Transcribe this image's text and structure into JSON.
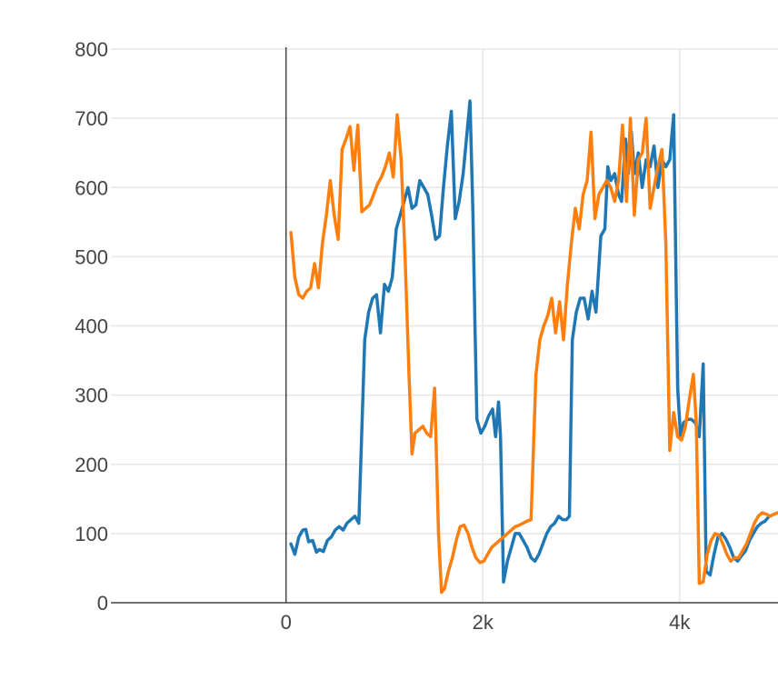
{
  "chart_data": {
    "type": "line",
    "title": "",
    "xlabel": "",
    "ylabel": "",
    "xlim": [
      -1780,
      5000
    ],
    "ylim": [
      0,
      800
    ],
    "x_ticks": [
      0,
      2000,
      4000
    ],
    "x_tick_labels": [
      "0",
      "2k",
      "4k"
    ],
    "y_ticks": [
      0,
      100,
      200,
      300,
      400,
      500,
      600,
      700,
      800
    ],
    "y_tick_labels": [
      "0",
      "100",
      "200",
      "300",
      "400",
      "500",
      "600",
      "700",
      "800"
    ],
    "grid": true,
    "legend": "none",
    "series": [
      {
        "color": "#1f77b4",
        "points": [
          [
            50,
            85
          ],
          [
            90,
            70
          ],
          [
            130,
            95
          ],
          [
            170,
            105
          ],
          [
            200,
            106
          ],
          [
            230,
            88
          ],
          [
            270,
            90
          ],
          [
            310,
            73
          ],
          [
            340,
            77
          ],
          [
            380,
            74
          ],
          [
            420,
            90
          ],
          [
            460,
            95
          ],
          [
            500,
            105
          ],
          [
            540,
            110
          ],
          [
            580,
            105
          ],
          [
            620,
            115
          ],
          [
            660,
            120
          ],
          [
            700,
            125
          ],
          [
            740,
            115
          ],
          [
            800,
            380
          ],
          [
            840,
            420
          ],
          [
            880,
            440
          ],
          [
            920,
            445
          ],
          [
            960,
            390
          ],
          [
            1000,
            460
          ],
          [
            1040,
            450
          ],
          [
            1080,
            470
          ],
          [
            1120,
            540
          ],
          [
            1160,
            560
          ],
          [
            1200,
            580
          ],
          [
            1240,
            600
          ],
          [
            1280,
            570
          ],
          [
            1320,
            575
          ],
          [
            1360,
            610
          ],
          [
            1400,
            600
          ],
          [
            1440,
            590
          ],
          [
            1480,
            560
          ],
          [
            1520,
            525
          ],
          [
            1560,
            530
          ],
          [
            1600,
            600
          ],
          [
            1640,
            660
          ],
          [
            1680,
            710
          ],
          [
            1720,
            555
          ],
          [
            1760,
            580
          ],
          [
            1800,
            620
          ],
          [
            1840,
            680
          ],
          [
            1870,
            725
          ],
          [
            1900,
            560
          ],
          [
            1920,
            400
          ],
          [
            1940,
            265
          ],
          [
            1980,
            245
          ],
          [
            2020,
            255
          ],
          [
            2060,
            270
          ],
          [
            2100,
            280
          ],
          [
            2130,
            240
          ],
          [
            2160,
            290
          ],
          [
            2180,
            240
          ],
          [
            2210,
            30
          ],
          [
            2250,
            60
          ],
          [
            2290,
            80
          ],
          [
            2330,
            100
          ],
          [
            2370,
            100
          ],
          [
            2410,
            90
          ],
          [
            2450,
            80
          ],
          [
            2490,
            65
          ],
          [
            2530,
            60
          ],
          [
            2570,
            70
          ],
          [
            2610,
            85
          ],
          [
            2650,
            100
          ],
          [
            2690,
            110
          ],
          [
            2730,
            115
          ],
          [
            2770,
            125
          ],
          [
            2810,
            120
          ],
          [
            2850,
            120
          ],
          [
            2880,
            125
          ],
          [
            2910,
            380
          ],
          [
            2950,
            420
          ],
          [
            2990,
            440
          ],
          [
            3030,
            440
          ],
          [
            3070,
            410
          ],
          [
            3110,
            450
          ],
          [
            3150,
            420
          ],
          [
            3200,
            530
          ],
          [
            3240,
            540
          ],
          [
            3270,
            630
          ],
          [
            3300,
            610
          ],
          [
            3340,
            620
          ],
          [
            3380,
            590
          ],
          [
            3410,
            580
          ],
          [
            3450,
            670
          ],
          [
            3480,
            620
          ],
          [
            3510,
            680
          ],
          [
            3540,
            620
          ],
          [
            3580,
            650
          ],
          [
            3620,
            600
          ],
          [
            3660,
            640
          ],
          [
            3700,
            630
          ],
          [
            3740,
            660
          ],
          [
            3780,
            600
          ],
          [
            3820,
            640
          ],
          [
            3860,
            630
          ],
          [
            3900,
            640
          ],
          [
            3940,
            705
          ],
          [
            3980,
            310
          ],
          [
            4010,
            240
          ],
          [
            4040,
            260
          ],
          [
            4080,
            265
          ],
          [
            4120,
            265
          ],
          [
            4160,
            260
          ],
          [
            4200,
            240
          ],
          [
            4240,
            345
          ],
          [
            4270,
            45
          ],
          [
            4310,
            40
          ],
          [
            4350,
            70
          ],
          [
            4390,
            95
          ],
          [
            4430,
            100
          ],
          [
            4470,
            92
          ],
          [
            4510,
            80
          ],
          [
            4550,
            65
          ],
          [
            4590,
            60
          ],
          [
            4630,
            68
          ],
          [
            4670,
            75
          ],
          [
            4710,
            90
          ],
          [
            4750,
            100
          ],
          [
            4790,
            110
          ],
          [
            4830,
            115
          ],
          [
            4870,
            118
          ],
          [
            4910,
            125
          ]
        ]
      },
      {
        "color": "#ff7f0e",
        "points": [
          [
            50,
            535
          ],
          [
            90,
            470
          ],
          [
            130,
            445
          ],
          [
            170,
            440
          ],
          [
            210,
            450
          ],
          [
            250,
            455
          ],
          [
            290,
            490
          ],
          [
            330,
            455
          ],
          [
            370,
            520
          ],
          [
            410,
            560
          ],
          [
            450,
            610
          ],
          [
            490,
            560
          ],
          [
            530,
            525
          ],
          [
            570,
            655
          ],
          [
            610,
            670
          ],
          [
            650,
            688
          ],
          [
            690,
            625
          ],
          [
            730,
            690
          ],
          [
            770,
            565
          ],
          [
            810,
            570
          ],
          [
            850,
            575
          ],
          [
            890,
            590
          ],
          [
            930,
            605
          ],
          [
            970,
            615
          ],
          [
            1010,
            630
          ],
          [
            1050,
            650
          ],
          [
            1090,
            615
          ],
          [
            1130,
            705
          ],
          [
            1170,
            640
          ],
          [
            1210,
            500
          ],
          [
            1250,
            330
          ],
          [
            1280,
            215
          ],
          [
            1310,
            245
          ],
          [
            1350,
            250
          ],
          [
            1390,
            255
          ],
          [
            1430,
            245
          ],
          [
            1470,
            240
          ],
          [
            1510,
            310
          ],
          [
            1550,
            100
          ],
          [
            1580,
            15
          ],
          [
            1610,
            20
          ],
          [
            1650,
            45
          ],
          [
            1690,
            65
          ],
          [
            1730,
            90
          ],
          [
            1770,
            110
          ],
          [
            1810,
            112
          ],
          [
            1850,
            100
          ],
          [
            1890,
            80
          ],
          [
            1930,
            65
          ],
          [
            1970,
            58
          ],
          [
            2010,
            60
          ],
          [
            2050,
            70
          ],
          [
            2090,
            80
          ],
          [
            2130,
            85
          ],
          [
            2170,
            90
          ],
          [
            2210,
            95
          ],
          [
            2250,
            100
          ],
          [
            2290,
            105
          ],
          [
            2330,
            110
          ],
          [
            2370,
            112
          ],
          [
            2410,
            115
          ],
          [
            2450,
            118
          ],
          [
            2490,
            120
          ],
          [
            2540,
            330
          ],
          [
            2580,
            380
          ],
          [
            2620,
            400
          ],
          [
            2660,
            415
          ],
          [
            2700,
            440
          ],
          [
            2740,
            390
          ],
          [
            2780,
            435
          ],
          [
            2820,
            380
          ],
          [
            2860,
            460
          ],
          [
            2900,
            520
          ],
          [
            2940,
            570
          ],
          [
            2980,
            540
          ],
          [
            3020,
            590
          ],
          [
            3060,
            610
          ],
          [
            3100,
            680
          ],
          [
            3140,
            555
          ],
          [
            3180,
            590
          ],
          [
            3220,
            600
          ],
          [
            3260,
            610
          ],
          [
            3300,
            600
          ],
          [
            3340,
            580
          ],
          [
            3380,
            610
          ],
          [
            3420,
            690
          ],
          [
            3460,
            580
          ],
          [
            3500,
            700
          ],
          [
            3540,
            560
          ],
          [
            3580,
            640
          ],
          [
            3620,
            650
          ],
          [
            3660,
            700
          ],
          [
            3700,
            570
          ],
          [
            3740,
            600
          ],
          [
            3780,
            630
          ],
          [
            3820,
            655
          ],
          [
            3860,
            520
          ],
          [
            3900,
            220
          ],
          [
            3940,
            275
          ],
          [
            3980,
            240
          ],
          [
            4020,
            235
          ],
          [
            4060,
            255
          ],
          [
            4100,
            295
          ],
          [
            4140,
            330
          ],
          [
            4170,
            260
          ],
          [
            4200,
            28
          ],
          [
            4240,
            30
          ],
          [
            4280,
            70
          ],
          [
            4320,
            90
          ],
          [
            4360,
            100
          ],
          [
            4400,
            98
          ],
          [
            4440,
            85
          ],
          [
            4480,
            70
          ],
          [
            4520,
            60
          ],
          [
            4560,
            65
          ],
          [
            4600,
            65
          ],
          [
            4640,
            75
          ],
          [
            4680,
            85
          ],
          [
            4720,
            100
          ],
          [
            4760,
            115
          ],
          [
            4800,
            125
          ],
          [
            4840,
            130
          ],
          [
            4880,
            128
          ],
          [
            4920,
            125
          ],
          [
            4960,
            128
          ],
          [
            5000,
            130
          ]
        ]
      }
    ]
  }
}
